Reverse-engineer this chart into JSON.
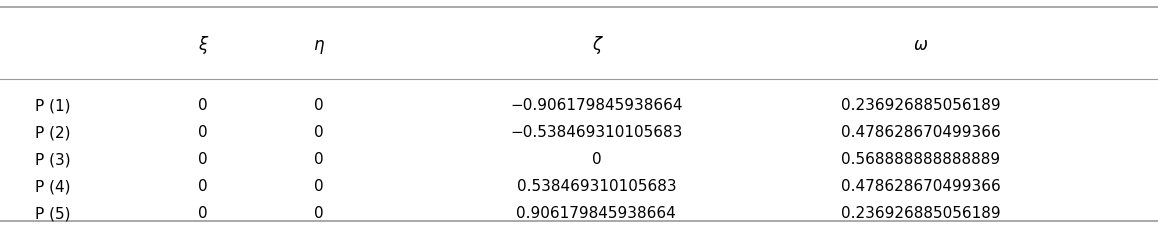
{
  "headers": [
    "ξ",
    "η",
    "ζ",
    "ω"
  ],
  "row_labels": [
    "P (1)",
    "P (2)",
    "P (3)",
    "P (4)",
    "P (5)"
  ],
  "col_xi": [
    "0",
    "0",
    "0",
    "0",
    "0"
  ],
  "col_eta": [
    "0",
    "0",
    "0",
    "0",
    "0"
  ],
  "col_zeta": [
    "−0.906179845938664",
    "−0.538469310105683",
    "0",
    "0.538469310105683",
    "0.906179845938664"
  ],
  "col_omega": [
    "0.236926885056189",
    "0.478628670499366",
    "0.568888888888889",
    "0.478628670499366",
    "0.236926885056189"
  ],
  "bg_color": "#ffffff",
  "text_color": "#000000",
  "line_color": "#999999",
  "figsize": [
    11.58,
    2.25
  ],
  "dpi": 100
}
